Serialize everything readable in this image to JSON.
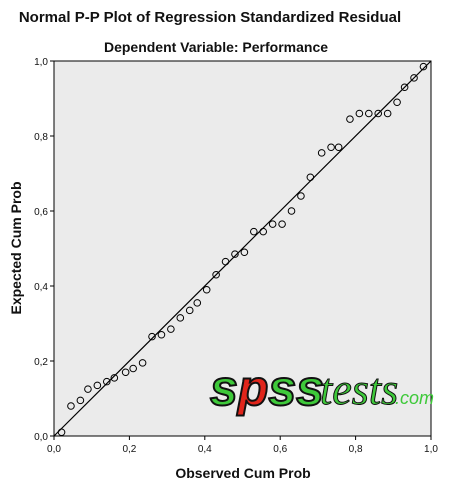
{
  "chart_data": {
    "type": "scatter",
    "title": "Normal P-P Plot of Regression Standardized Residual",
    "subtitle": "Dependent Variable: Performance",
    "xlabel": "Observed Cum Prob",
    "ylabel": "Expected Cum Prob",
    "xlim": [
      0,
      1
    ],
    "ylim": [
      0,
      1
    ],
    "x_ticks": [
      "0,0",
      "0,2",
      "0,4",
      "0,6",
      "0,8",
      "1,0"
    ],
    "y_ticks": [
      "0,0",
      "0,2",
      "0,4",
      "0,6",
      "0,8",
      "1,0"
    ],
    "grid": false,
    "reference_line": [
      [
        0,
        0
      ],
      [
        1,
        1
      ]
    ],
    "points": [
      [
        0.02,
        0.01
      ],
      [
        0.045,
        0.08
      ],
      [
        0.07,
        0.095
      ],
      [
        0.09,
        0.125
      ],
      [
        0.115,
        0.135
      ],
      [
        0.14,
        0.145
      ],
      [
        0.16,
        0.155
      ],
      [
        0.19,
        0.17
      ],
      [
        0.21,
        0.18
      ],
      [
        0.235,
        0.195
      ],
      [
        0.26,
        0.265
      ],
      [
        0.285,
        0.27
      ],
      [
        0.31,
        0.285
      ],
      [
        0.335,
        0.315
      ],
      [
        0.36,
        0.335
      ],
      [
        0.38,
        0.355
      ],
      [
        0.405,
        0.39
      ],
      [
        0.43,
        0.43
      ],
      [
        0.455,
        0.465
      ],
      [
        0.48,
        0.485
      ],
      [
        0.505,
        0.49
      ],
      [
        0.53,
        0.545
      ],
      [
        0.555,
        0.545
      ],
      [
        0.58,
        0.565
      ],
      [
        0.605,
        0.565
      ],
      [
        0.63,
        0.6
      ],
      [
        0.655,
        0.64
      ],
      [
        0.68,
        0.69
      ],
      [
        0.71,
        0.755
      ],
      [
        0.735,
        0.77
      ],
      [
        0.755,
        0.77
      ],
      [
        0.785,
        0.845
      ],
      [
        0.81,
        0.86
      ],
      [
        0.835,
        0.86
      ],
      [
        0.86,
        0.86
      ],
      [
        0.885,
        0.86
      ],
      [
        0.91,
        0.89
      ],
      [
        0.93,
        0.93
      ],
      [
        0.955,
        0.955
      ],
      [
        0.98,
        0.985
      ]
    ],
    "colors": {
      "plot_background": "#ebebeb",
      "marker": "#000000",
      "line": "#000000"
    }
  },
  "watermark": {
    "spss": "spss",
    "tests": "tests",
    "com": ".com",
    "colors": {
      "spss_fill": "#3ec93a",
      "spss_p_fill": "#e0251b",
      "tests_fill": "#3ec93a",
      "outline": "#111111"
    }
  }
}
